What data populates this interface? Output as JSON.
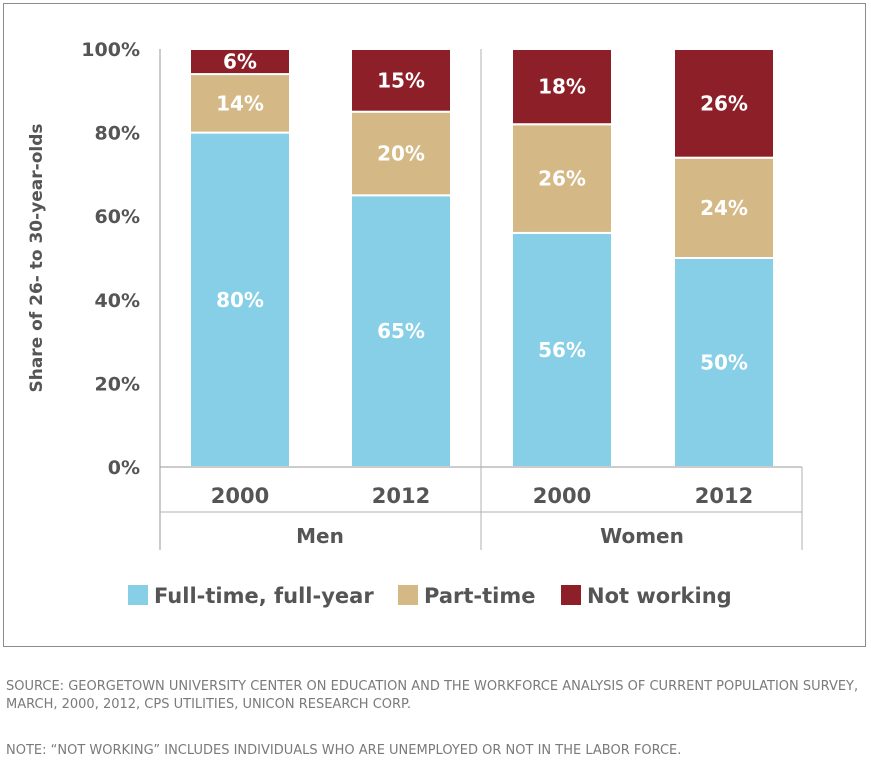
{
  "chart_data": {
    "type": "bar",
    "stacked": true,
    "ylabel": "Share of 26- to 30-year-olds",
    "ylim": [
      0,
      100
    ],
    "yticks": [
      "0%",
      "20%",
      "40%",
      "60%",
      "80%",
      "100%"
    ],
    "categories": [
      {
        "group": "Men",
        "year": "2000"
      },
      {
        "group": "Men",
        "year": "2012"
      },
      {
        "group": "Women",
        "year": "2000"
      },
      {
        "group": "Women",
        "year": "2012"
      }
    ],
    "groups": [
      "Men",
      "Women"
    ],
    "series": [
      {
        "name": "Full-time, full-year",
        "color": "#86cfe6",
        "values": [
          80,
          65,
          56,
          50
        ],
        "labels": [
          "80%",
          "65%",
          "56%",
          "50%"
        ]
      },
      {
        "name": "Part-time",
        "color": "#d4b886",
        "values": [
          14,
          20,
          26,
          24
        ],
        "labels": [
          "14%",
          "20%",
          "26%",
          "24%"
        ]
      },
      {
        "name": "Not working",
        "color": "#8c1f28",
        "values": [
          6,
          15,
          18,
          26
        ],
        "labels": [
          "6%",
          "15%",
          "18%",
          "26%"
        ]
      }
    ],
    "legend_position": "bottom",
    "grid": false
  },
  "notes": {
    "source": "SOURCE: GEORGETOWN UNIVERSITY CENTER ON EDUCATION AND THE WORKFORCE ANALYSIS OF CURRENT POPULATION SURVEY, MARCH, 2000, 2012, CPS UTILITIES, UNICON RESEARCH CORP.",
    "footnote": "NOTE: “NOT WORKING” INCLUDES INDIVIDUALS WHO ARE UNEMPLOYED OR NOT IN THE LABOR FORCE."
  }
}
